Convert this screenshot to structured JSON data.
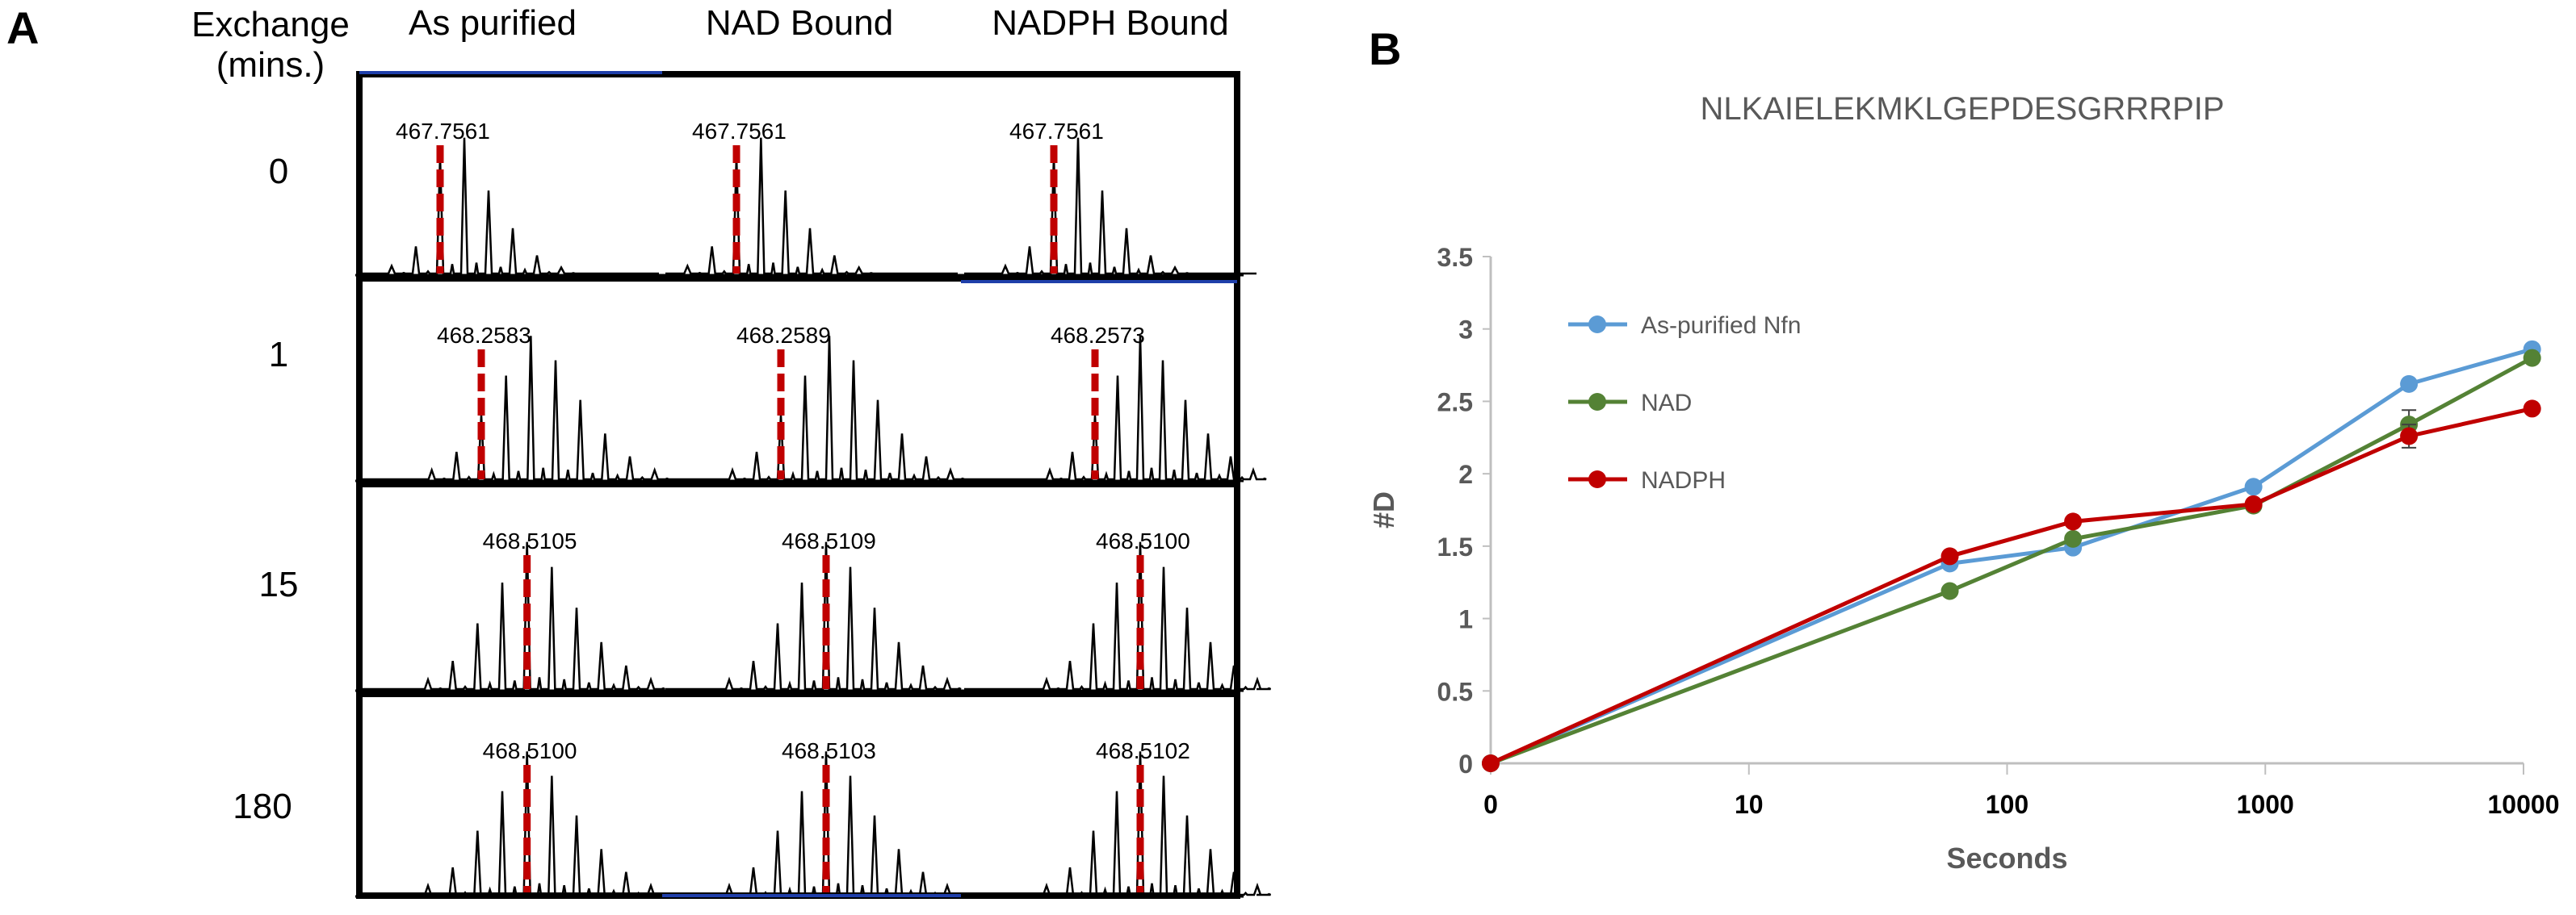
{
  "panel_a": {
    "letter": "A",
    "row_header_label": "Exchange (mins.)",
    "column_headers": [
      "As purified",
      "NAD Bound",
      "NADPH Bound"
    ],
    "rows": [
      {
        "time": "0",
        "labels": [
          "467.7561",
          "467.7561",
          "467.7561"
        ]
      },
      {
        "time": "1",
        "labels": [
          "468.2583",
          "468.2589",
          "468.2573"
        ]
      },
      {
        "time": "15",
        "labels": [
          "468.5105",
          "468.5109",
          "468.5100"
        ]
      },
      {
        "time": "180",
        "labels": [
          "468.5100",
          "468.5103",
          "468.5102"
        ]
      }
    ],
    "colors": {
      "marker": "#c00000",
      "accent_line": "#1f3faa"
    }
  },
  "panel_b": {
    "letter": "B",
    "chart_data": {
      "type": "line",
      "title": "NLKAIELEKMKLGEPDESGRRRPIP",
      "xlabel": "Seconds",
      "ylabel": "#D",
      "xscale": "log-ish (0 shown at origin)",
      "x_ticks": [
        "0",
        "10",
        "100",
        "1000",
        "10000"
      ],
      "y_ticks": [
        "0",
        "0.5",
        "1",
        "1.5",
        "2",
        "2.5",
        "3",
        "3.5"
      ],
      "ylim": [
        0,
        3.5
      ],
      "legend_position": "top-left",
      "series": [
        {
          "name": "As-purified Nfn",
          "color": "#5b9bd5",
          "x": [
            0,
            60,
            180,
            900,
            3600,
            10800
          ],
          "y": [
            0,
            1.38,
            1.49,
            1.91,
            2.62,
            2.86
          ]
        },
        {
          "name": "NAD",
          "color": "#548235",
          "x": [
            0,
            60,
            180,
            900,
            3600,
            10800
          ],
          "y": [
            0,
            1.19,
            1.55,
            1.78,
            2.34,
            2.8
          ]
        },
        {
          "name": "NADPH",
          "color": "#c00000",
          "x": [
            0,
            60,
            180,
            900,
            3600,
            10800
          ],
          "y": [
            0,
            1.43,
            1.67,
            1.79,
            2.26,
            2.45
          ]
        }
      ]
    }
  }
}
